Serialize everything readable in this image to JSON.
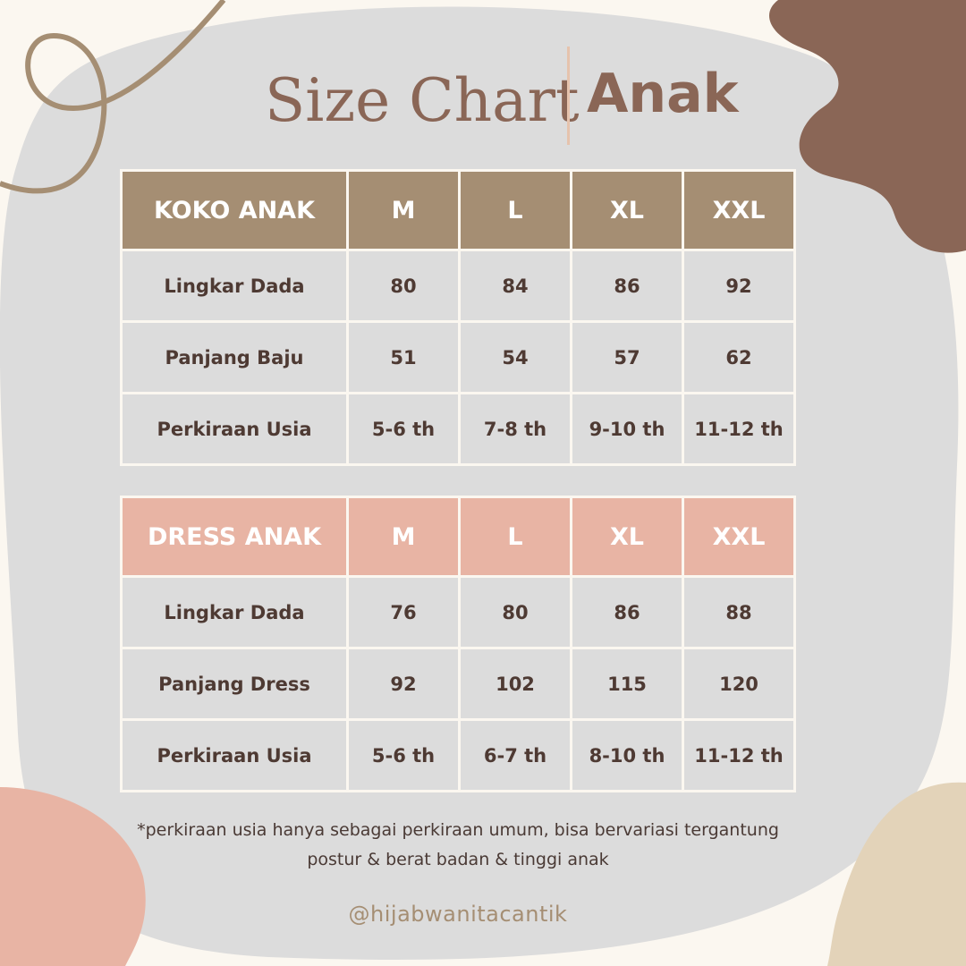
{
  "title": {
    "main": "Size Chart",
    "sub": "Anak"
  },
  "colors": {
    "background": "#fbf7f0",
    "panel": "#dcdcdc",
    "brown": "#8a6656",
    "koko_header": "#a58e73",
    "dress_header": "#e8b4a4",
    "beige": "#e3d3b9",
    "text": "#4e3a33"
  },
  "tables": [
    {
      "headers": [
        "KOKO ANAK",
        "M",
        "L",
        "XL",
        "XXL"
      ],
      "rows": [
        [
          "Lingkar Dada",
          "80",
          "84",
          "86",
          "92"
        ],
        [
          "Panjang Baju",
          "51",
          "54",
          "57",
          "62"
        ],
        [
          "Perkiraan Usia",
          "5-6 th",
          "7-8 th",
          "9-10 th",
          "11-12 th"
        ]
      ]
    },
    {
      "headers": [
        "DRESS ANAK",
        "M",
        "L",
        "XL",
        "XXL"
      ],
      "rows": [
        [
          "Lingkar Dada",
          "76",
          "80",
          "86",
          "88"
        ],
        [
          "Panjang Dress",
          "92",
          "102",
          "115",
          "120"
        ],
        [
          "Perkiraan Usia",
          "5-6 th",
          "6-7 th",
          "8-10 th",
          "11-12 th"
        ]
      ]
    }
  ],
  "note": {
    "line1": "*perkiraan usia hanya sebagai perkiraan umum, bisa bervariasi tergantung",
    "line2": "postur & berat badan & tinggi anak"
  },
  "handle": "@hijabwanitacantik"
}
